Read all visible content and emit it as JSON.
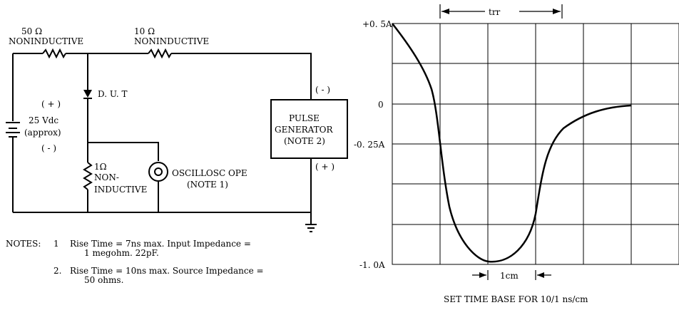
{
  "circuit": {
    "r1_value": "50 Ω",
    "r1_type": "NONINDUCTIVE",
    "r2_value": "10 Ω",
    "r2_type": "NONINDUCTIVE",
    "dut_label": "D. U. T",
    "battery_plus": "( + )",
    "battery_voltage": "25 Vdc",
    "battery_approx": "(approx)",
    "battery_minus": "( - )",
    "r3_value": "1Ω",
    "r3_line1": "NON-",
    "r3_line2": "INDUCTIVE",
    "scope_label": "OSCILLOSC OPE",
    "scope_note": "(NOTE 1)",
    "pulse_minus": "( - )",
    "pulse_line1": "PULSE",
    "pulse_line2": "GENERATOR",
    "pulse_line3": "(NOTE 2)",
    "pulse_plus": "( + )"
  },
  "notes": {
    "heading": "NOTES:",
    "n1_num": "1",
    "n1_line1": "Rise Time = 7ns max. Input Impedance =",
    "n1_line2": "1 megohm. 22pF.",
    "n2_num": "2.",
    "n2_line1": "Rise Time = 10ns max. Source Impedance =",
    "n2_line2": "50 ohms."
  },
  "waveform": {
    "trr_label": "trr",
    "cm_label": "1cm",
    "caption": "SET TIME BASE FOR 10/1 ns/cm",
    "y_ticks": [
      "+0. 5A",
      "0",
      "-0. 25A",
      "-1. 0A"
    ]
  }
}
